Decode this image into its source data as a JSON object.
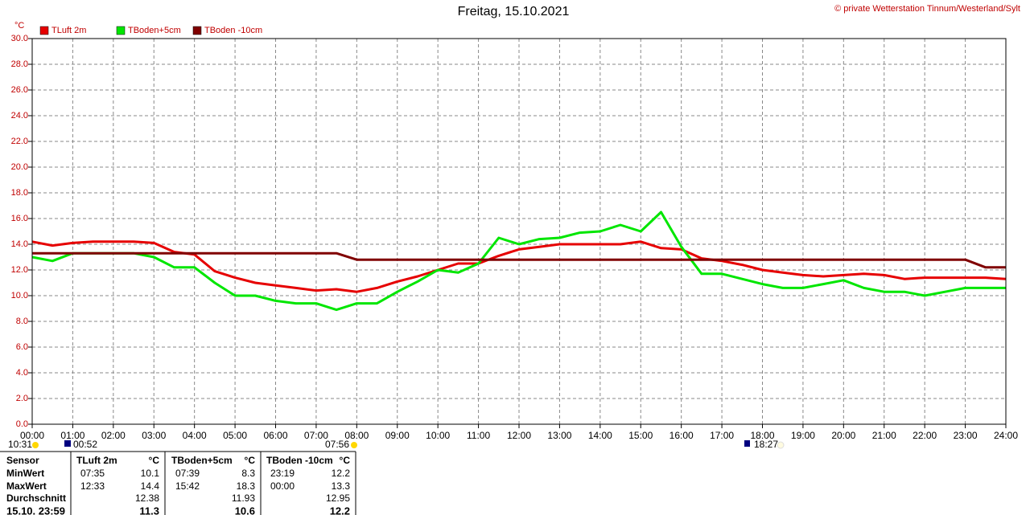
{
  "chart_data": {
    "type": "line",
    "title": "Freitag, 15.10.2021",
    "copyright": "© private Wetterstation Tinnum/Westerland/Sylt",
    "y_unit": "°C",
    "x": [
      0,
      0.5,
      1,
      1.5,
      2,
      2.5,
      3,
      3.5,
      4,
      4.5,
      5,
      5.5,
      6,
      6.5,
      7,
      7.5,
      8,
      8.5,
      9,
      9.5,
      10,
      10.5,
      11,
      11.5,
      12,
      12.5,
      13,
      13.5,
      14,
      14.5,
      15,
      15.5,
      16,
      16.5,
      17,
      17.5,
      18,
      18.5,
      19,
      19.5,
      20,
      20.5,
      21,
      21.5,
      22,
      22.5,
      23,
      23.5,
      24
    ],
    "series": [
      {
        "name": "TLuft 2m",
        "color": "#e60000",
        "values": [
          14.2,
          13.9,
          14.1,
          14.2,
          14.2,
          14.2,
          14.1,
          13.4,
          13.2,
          11.9,
          11.4,
          11.0,
          10.8,
          10.6,
          10.4,
          10.5,
          10.3,
          10.6,
          11.1,
          11.5,
          12.0,
          12.5,
          12.5,
          13.1,
          13.6,
          13.8,
          14.0,
          14.0,
          14.0,
          14.0,
          14.2,
          13.7,
          13.6,
          12.9,
          12.7,
          12.4,
          12.0,
          11.8,
          11.6,
          11.5,
          11.6,
          11.7,
          11.6,
          11.3,
          11.4,
          11.4,
          11.4,
          11.4,
          11.3
        ]
      },
      {
        "name": "TBoden+5cm",
        "color": "#00e600",
        "values": [
          13.0,
          12.7,
          13.3,
          13.3,
          13.3,
          13.3,
          13.0,
          12.2,
          12.2,
          11.0,
          10.0,
          10.0,
          9.6,
          9.4,
          9.4,
          8.9,
          9.4,
          9.4,
          10.3,
          11.1,
          12.0,
          11.8,
          12.5,
          14.5,
          14.0,
          14.4,
          14.5,
          14.9,
          15.0,
          15.5,
          15.0,
          16.5,
          13.8,
          11.7,
          11.7,
          11.3,
          10.9,
          10.6,
          10.6,
          10.9,
          11.2,
          10.6,
          10.3,
          10.3,
          10.0,
          10.3,
          10.6,
          10.6,
          10.6
        ]
      },
      {
        "name": "TBoden -10cm",
        "color": "#800000",
        "values": [
          13.3,
          13.3,
          13.3,
          13.3,
          13.3,
          13.3,
          13.3,
          13.3,
          13.3,
          13.3,
          13.3,
          13.3,
          13.3,
          13.3,
          13.3,
          13.3,
          12.8,
          12.8,
          12.8,
          12.8,
          12.8,
          12.8,
          12.8,
          12.8,
          12.8,
          12.8,
          12.8,
          12.8,
          12.8,
          12.8,
          12.8,
          12.8,
          12.8,
          12.8,
          12.8,
          12.8,
          12.8,
          12.8,
          12.8,
          12.8,
          12.8,
          12.8,
          12.8,
          12.8,
          12.8,
          12.8,
          12.8,
          12.2,
          12.2
        ]
      }
    ],
    "xlim": [
      0,
      24
    ],
    "xticks": [
      {
        "value": 0,
        "label": "00:00"
      },
      {
        "value": 1,
        "label": "01:00"
      },
      {
        "value": 2,
        "label": "02:00"
      },
      {
        "value": 3,
        "label": "03:00"
      },
      {
        "value": 4,
        "label": "04:00"
      },
      {
        "value": 5,
        "label": "05:00"
      },
      {
        "value": 6,
        "label": "06:00"
      },
      {
        "value": 7,
        "label": "07:00"
      },
      {
        "value": 8,
        "label": "08:00"
      },
      {
        "value": 9,
        "label": "09:00"
      },
      {
        "value": 10,
        "label": "10:00"
      },
      {
        "value": 11,
        "label": "11:00"
      },
      {
        "value": 12,
        "label": "12:00"
      },
      {
        "value": 13,
        "label": "13:00"
      },
      {
        "value": 14,
        "label": "14:00"
      },
      {
        "value": 15,
        "label": "15:00"
      },
      {
        "value": 16,
        "label": "16:00"
      },
      {
        "value": 17,
        "label": "17:00"
      },
      {
        "value": 18,
        "label": "18:00"
      },
      {
        "value": 19,
        "label": "19:00"
      },
      {
        "value": 20,
        "label": "20:00"
      },
      {
        "value": 21,
        "label": "21:00"
      },
      {
        "value": 22,
        "label": "22:00"
      },
      {
        "value": 23,
        "label": "23:00"
      },
      {
        "value": 24,
        "label": "24:00"
      }
    ],
    "ylim": [
      0,
      30
    ],
    "yticks": [
      {
        "value": 0,
        "label": "0.0"
      },
      {
        "value": 2,
        "label": "2.0"
      },
      {
        "value": 4,
        "label": "4.0"
      },
      {
        "value": 6,
        "label": "6.0"
      },
      {
        "value": 8,
        "label": "8.0"
      },
      {
        "value": 10,
        "label": "10.0"
      },
      {
        "value": 12,
        "label": "12.0"
      },
      {
        "value": 14,
        "label": "14.0"
      },
      {
        "value": 16,
        "label": "16.0"
      },
      {
        "value": 18,
        "label": "18.0"
      },
      {
        "value": 20,
        "label": "20.0"
      },
      {
        "value": 22,
        "label": "22.0"
      },
      {
        "value": 24,
        "label": "24.0"
      },
      {
        "value": 26,
        "label": "26.0"
      },
      {
        "value": 28,
        "label": "28.0"
      },
      {
        "value": 30,
        "label": "30.0"
      }
    ],
    "grid": true,
    "markers": [
      "10:31",
      "00:52",
      "07:56",
      "18:27"
    ]
  },
  "stats_table": {
    "header_label": "Sensor",
    "rows": [
      {
        "label": "MinWert",
        "cells": [
          {
            "time": "07:35",
            "value": 10.1
          },
          {
            "time": "07:39",
            "value": 8.3
          },
          {
            "time": "23:19",
            "value": 12.2
          }
        ]
      },
      {
        "label": "MaxWert",
        "cells": [
          {
            "time": "12:33",
            "value": 14.4
          },
          {
            "time": "15:42",
            "value": 18.3
          },
          {
            "time": "00:00",
            "value": 13.3
          }
        ]
      },
      {
        "label": "Durchschnitt",
        "cells": [
          {
            "value": 12.38
          },
          {
            "value": 11.93
          },
          {
            "value": 12.95
          }
        ]
      },
      {
        "label": "15.10. 23:59",
        "cells": [
          {
            "value": 11.3
          },
          {
            "value": 10.6
          },
          {
            "value": 12.2
          }
        ]
      }
    ]
  }
}
